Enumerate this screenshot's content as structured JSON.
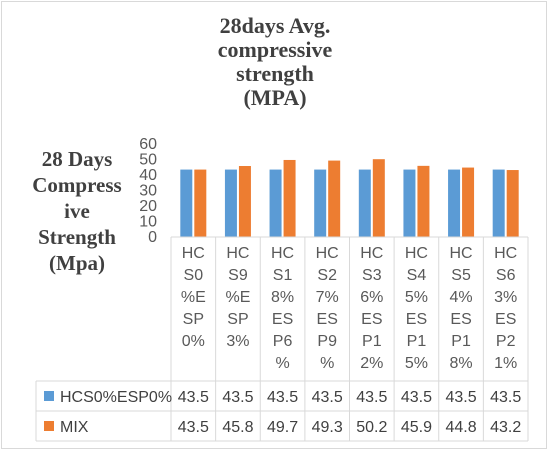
{
  "chart_data": {
    "type": "bar",
    "title": "28days Avg. compressive strength (MPA)",
    "title_lines": [
      "28days Avg.",
      "compressive",
      "strength",
      "(MPA)"
    ],
    "ylabel": "28 Days Compressive Strength (Mpa)",
    "ylabel_lines": [
      "28 Days",
      "Compress",
      "ive",
      "Strength",
      "(Mpa)"
    ],
    "ylim": [
      0,
      60
    ],
    "yticks": [
      "0",
      "10",
      "20",
      "30",
      "40",
      "50",
      "60"
    ],
    "categories": [
      "HCS0%ESP0%",
      "HCS9%ESP3%",
      "HCS18%ESP6%",
      "HCS27%ESP9%",
      "HCS36%ESP12%",
      "HCS45%ESP15%",
      "HCS54%ESP18%",
      "HCS63%ESP21%"
    ],
    "category_lines": [
      [
        "HC",
        "S0",
        "%E",
        "SP",
        "0%"
      ],
      [
        "HC",
        "S9",
        "%E",
        "SP",
        "3%"
      ],
      [
        "HC",
        "S1",
        "8%",
        "ES",
        "P6",
        "%"
      ],
      [
        "HC",
        "S2",
        "7%",
        "ES",
        "P9",
        "%"
      ],
      [
        "HC",
        "S3",
        "6%",
        "ES",
        "P1",
        "2%"
      ],
      [
        "HC",
        "S4",
        "5%",
        "ES",
        "P1",
        "5%"
      ],
      [
        "HC",
        "S5",
        "4%",
        "ES",
        "P1",
        "8%"
      ],
      [
        "HC",
        "S6",
        "3%",
        "ES",
        "P2",
        "1%"
      ]
    ],
    "series": [
      {
        "name": "HCS0%ESP0%",
        "color": "#5b9bd5",
        "values": [
          43.5,
          43.5,
          43.5,
          43.5,
          43.5,
          43.5,
          43.5,
          43.5
        ],
        "labels": [
          "43.5",
          "43.5",
          "43.5",
          "43.5",
          "43.5",
          "43.5",
          "43.5",
          "43.5"
        ]
      },
      {
        "name": "MIX",
        "color": "#ed7d31",
        "values": [
          43.5,
          45.8,
          49.7,
          49.3,
          50.2,
          45.9,
          44.8,
          43.2
        ],
        "labels": [
          "43.5",
          "45.8",
          "49.7",
          "49.3",
          "50.2",
          "45.9",
          "44.8",
          "43.2"
        ]
      }
    ],
    "grid": false,
    "legend": "data table below chart"
  }
}
